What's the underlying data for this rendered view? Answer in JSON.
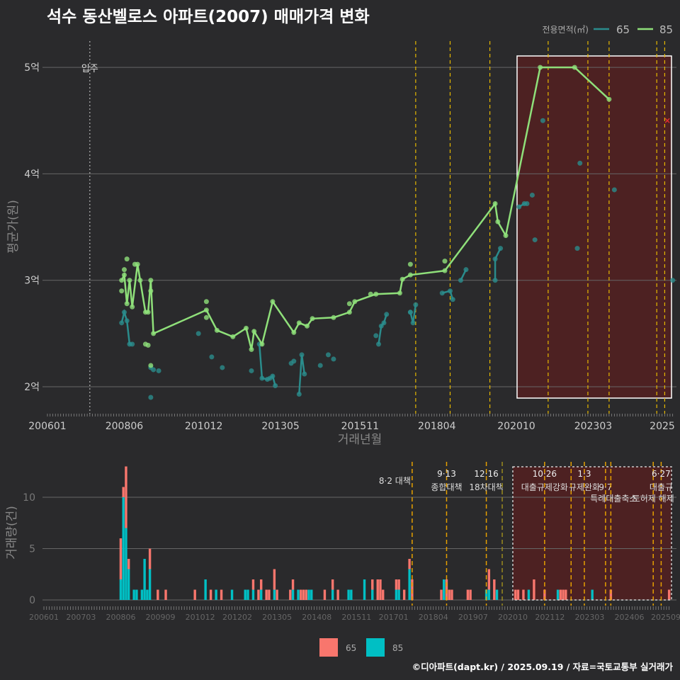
{
  "title": "석수 동산벨로스 아파트(2007) 매매가격 변화",
  "footer": "©디아파트(dapt.kr) / 2025.09.19 / 자료=국토교통부 실거래가",
  "colors": {
    "bg": "#2a2a2c",
    "s65_line": "#2a8c8c",
    "s85_line": "#8fe07a",
    "bar65": "#F8766D",
    "bar85": "#00BFC4",
    "event": "#e6b800",
    "highlight": "#5a1f1f"
  },
  "chart_data": [
    {
      "type": "line",
      "title": "석수 동산벨로스 아파트(2007) 매매가격 변화",
      "xlabel": "거래년월",
      "ylabel": "평균가(원)",
      "x_start": "200601",
      "x_ticks": [
        "200601",
        "200806",
        "201012",
        "201305",
        "201511",
        "201804",
        "202010",
        "202303",
        "2025"
      ],
      "y_ticks": [
        {
          "v": 2,
          "label": "2억"
        },
        {
          "v": 3,
          "label": "3억"
        },
        {
          "v": 4,
          "label": "4억"
        },
        {
          "v": 5,
          "label": "5억"
        }
      ],
      "ylim": [
        1.8,
        5.25
      ],
      "legend": {
        "title": "전용면적(㎡)",
        "items": [
          "65",
          "85"
        ],
        "position": "top-right"
      },
      "move_in": {
        "date": "200705",
        "label": "입주"
      },
      "highlight_range": [
        "202010",
        "202509"
      ],
      "event_dates": [
        "201708",
        "201809",
        "201912",
        "202110",
        "202301",
        "202309",
        "202503",
        "202506"
      ],
      "series": [
        {
          "name": "85",
          "line": [
            [
              "200805",
              3.0
            ],
            [
              "200806",
              3.05
            ],
            [
              "200807",
              2.78
            ],
            [
              "200808",
              3.0
            ],
            [
              "200809",
              2.75
            ],
            [
              "200811",
              3.15
            ],
            [
              "200812",
              3.0
            ],
            [
              "200902",
              2.7
            ],
            [
              "200903",
              2.7
            ],
            [
              "200904",
              3.0
            ],
            [
              "200905",
              2.5
            ],
            [
              "201101",
              2.72
            ],
            [
              "201105",
              2.53
            ],
            [
              "201111",
              2.47
            ],
            [
              "201204",
              2.55
            ],
            [
              "201206",
              2.35
            ],
            [
              "201207",
              2.52
            ],
            [
              "201210",
              2.4
            ],
            [
              "201302",
              2.8
            ],
            [
              "201310",
              2.51
            ],
            [
              "201312",
              2.6
            ],
            [
              "201403",
              2.57
            ],
            [
              "201405",
              2.64
            ],
            [
              "201501",
              2.65
            ],
            [
              "201507",
              2.7
            ],
            [
              "201509",
              2.8
            ],
            [
              "201605",
              2.87
            ],
            [
              "201702",
              2.88
            ],
            [
              "201703",
              3.01
            ],
            [
              "201706",
              3.05
            ],
            [
              "201807",
              3.09
            ],
            [
              "202002",
              3.72
            ],
            [
              "202003",
              3.55
            ],
            [
              "202006",
              3.42
            ],
            [
              "202107",
              5.0
            ],
            [
              "202208",
              5.0
            ],
            [
              "202309",
              4.7
            ]
          ],
          "points": [
            [
              "200805",
              2.9
            ],
            [
              "200806",
              3.1
            ],
            [
              "200807",
              3.2
            ],
            [
              "200810",
              3.15
            ],
            [
              "200904",
              2.9
            ],
            [
              "200902",
              2.4
            ],
            [
              "200903",
              2.39
            ],
            [
              "200904",
              2.2
            ],
            [
              "201101",
              2.8
            ],
            [
              "201101",
              2.65
            ],
            [
              "201507",
              2.78
            ],
            [
              "201603",
              2.87
            ],
            [
              "201706",
              3.15
            ],
            [
              "201807",
              3.18
            ]
          ]
        },
        {
          "name": "65",
          "segments": [
            [
              [
                "200805",
                2.6
              ],
              [
                "200806",
                2.7
              ],
              [
                "200807",
                2.62
              ],
              [
                "200808",
                2.4
              ],
              [
                "200809",
                2.4
              ]
            ],
            [
              [
                "201209",
                2.4
              ],
              [
                "201210",
                2.08
              ],
              [
                "201212",
                2.07
              ],
              [
                "201301",
                2.08
              ],
              [
                "201302",
                2.1
              ],
              [
                "201303",
                2.01
              ]
            ],
            [
              [
                "201312",
                1.93
              ],
              [
                "201401",
                2.3
              ],
              [
                "201402",
                2.12
              ]
            ],
            [
              [
                "201606",
                2.4
              ],
              [
                "201607",
                2.57
              ],
              [
                "201608",
                2.6
              ],
              [
                "201609",
                2.68
              ]
            ],
            [
              [
                "201706",
                2.7
              ],
              [
                "201707",
                2.6
              ],
              [
                "201708",
                2.77
              ]
            ],
            [
              [
                "201806",
                2.88
              ],
              [
                "201809",
                2.9
              ],
              [
                "201810",
                2.82
              ]
            ],
            [
              [
                "201901",
                3.0
              ],
              [
                "201903",
                3.1
              ]
            ],
            [
              [
                "202002",
                3.0
              ],
              [
                "202002",
                3.2
              ],
              [
                "202004",
                3.3
              ]
            ],
            [
              [
                "202011",
                3.69
              ],
              [
                "202101",
                3.72
              ],
              [
                "202102",
                3.72
              ]
            ]
          ],
          "points": [
            [
              "200904",
              2.18
            ],
            [
              "200904",
              1.9
            ],
            [
              "200905",
              2.16
            ],
            [
              "200907",
              2.15
            ],
            [
              "201010",
              2.5
            ],
            [
              "201103",
              2.28
            ],
            [
              "201107",
              2.18
            ],
            [
              "201206",
              2.15
            ],
            [
              "201309",
              2.22
            ],
            [
              "201310",
              2.24
            ],
            [
              "201408",
              2.2
            ],
            [
              "201411",
              2.3
            ],
            [
              "201501",
              2.26
            ],
            [
              "201605",
              2.48
            ],
            [
              "201706",
              2.7
            ],
            [
              "202104",
              3.8
            ],
            [
              "202105",
              3.38
            ],
            [
              "202108",
              4.5
            ],
            [
              "202209",
              3.3
            ],
            [
              "202210",
              4.1
            ],
            [
              "202311",
              3.85
            ],
            [
              "202509",
              3.0
            ]
          ]
        }
      ],
      "marker": {
        "date": "202507",
        "value": 4.5,
        "symbol": "x"
      }
    },
    {
      "type": "bar",
      "stacked": true,
      "xlabel": "",
      "ylabel": "거래량(건)",
      "x_ticks": [
        "200601",
        "200703",
        "200806",
        "200909",
        "201012",
        "201202",
        "201305",
        "201408",
        "201511",
        "201701",
        "201804",
        "201907",
        "202010",
        "202112",
        "202303",
        "202406",
        "202509"
      ],
      "y_ticks": [
        0,
        5,
        10
      ],
      "ylim": [
        0,
        13
      ],
      "legend": {
        "items": [
          "65",
          "85"
        ],
        "position": "bottom"
      },
      "bars": [
        [
          29,
          4,
          2
        ],
        [
          30,
          1,
          10
        ],
        [
          31,
          6,
          7
        ],
        [
          32,
          1,
          3
        ],
        [
          34,
          0,
          1
        ],
        [
          35,
          0,
          1
        ],
        [
          37,
          0,
          1
        ],
        [
          38,
          0,
          4
        ],
        [
          39,
          0,
          1
        ],
        [
          40,
          2,
          3
        ],
        [
          43,
          1,
          0
        ],
        [
          46,
          1,
          0
        ],
        [
          57,
          1,
          0
        ],
        [
          61,
          0,
          2
        ],
        [
          63,
          1,
          0
        ],
        [
          65,
          0,
          1
        ],
        [
          67,
          1,
          0
        ],
        [
          71,
          0,
          1
        ],
        [
          76,
          0,
          1
        ],
        [
          77,
          0,
          1
        ],
        [
          79,
          1,
          1
        ],
        [
          81,
          1,
          0
        ],
        [
          82,
          1,
          1
        ],
        [
          84,
          1,
          0
        ],
        [
          85,
          1,
          0
        ],
        [
          87,
          2,
          1
        ],
        [
          88,
          1,
          0
        ],
        [
          93,
          1,
          0
        ],
        [
          94,
          1,
          1
        ],
        [
          96,
          0,
          1
        ],
        [
          97,
          1,
          0
        ],
        [
          98,
          1,
          0
        ],
        [
          99,
          1,
          0
        ],
        [
          100,
          0,
          1
        ],
        [
          101,
          0,
          1
        ],
        [
          106,
          1,
          0
        ],
        [
          109,
          1,
          1
        ],
        [
          111,
          1,
          0
        ],
        [
          115,
          0,
          1
        ],
        [
          116,
          0,
          1
        ],
        [
          121,
          0,
          2
        ],
        [
          124,
          1,
          1
        ],
        [
          126,
          2,
          0
        ],
        [
          127,
          2,
          0
        ],
        [
          128,
          1,
          0
        ],
        [
          133,
          1,
          1
        ],
        [
          134,
          1,
          1
        ],
        [
          136,
          1,
          0
        ],
        [
          138,
          1,
          3
        ],
        [
          139,
          2,
          0
        ],
        [
          150,
          1,
          0
        ],
        [
          151,
          0,
          2
        ],
        [
          152,
          2,
          0
        ],
        [
          153,
          1,
          0
        ],
        [
          154,
          1,
          0
        ],
        [
          160,
          1,
          0
        ],
        [
          161,
          1,
          0
        ],
        [
          167,
          0,
          1
        ],
        [
          168,
          2,
          1
        ],
        [
          170,
          2,
          0
        ],
        [
          171,
          0,
          1
        ],
        [
          178,
          1,
          0
        ],
        [
          179,
          1,
          0
        ],
        [
          181,
          1,
          0
        ],
        [
          183,
          0,
          1
        ],
        [
          185,
          2,
          0
        ],
        [
          189,
          1,
          0
        ],
        [
          194,
          0,
          1
        ],
        [
          195,
          1,
          0
        ],
        [
          196,
          1,
          0
        ],
        [
          197,
          1,
          0
        ],
        [
          207,
          0,
          1
        ],
        [
          214,
          1,
          0
        ],
        [
          236,
          1,
          0
        ]
      ],
      "events": [
        {
          "date": "201708",
          "line1": "",
          "line2": "8·2 대책"
        },
        {
          "date": "201809",
          "line1": "9·13",
          "line2": "종합대책"
        },
        {
          "date": "201912",
          "line1": "12·16",
          "line2": "18차대책"
        },
        {
          "date": "202006",
          "line1": "",
          "line2": ""
        },
        {
          "date": "202110",
          "line1": "10·26",
          "line2": "대출규제강화"
        },
        {
          "date": "202208",
          "line1": "",
          "line2": ""
        },
        {
          "date": "202301",
          "line1": "1·3",
          "line2": "규제완화"
        },
        {
          "date": "202309",
          "line1": "",
          "line2": "9·7"
        },
        {
          "date": "202311",
          "line1": "",
          "line2": "",
          "line3": "특례대출축소"
        },
        {
          "date": "202503",
          "line1": "",
          "line2": "",
          "line3": "토허제 해제"
        },
        {
          "date": "202506",
          "line1": "6·27",
          "line2": "대출규"
        }
      ]
    }
  ]
}
